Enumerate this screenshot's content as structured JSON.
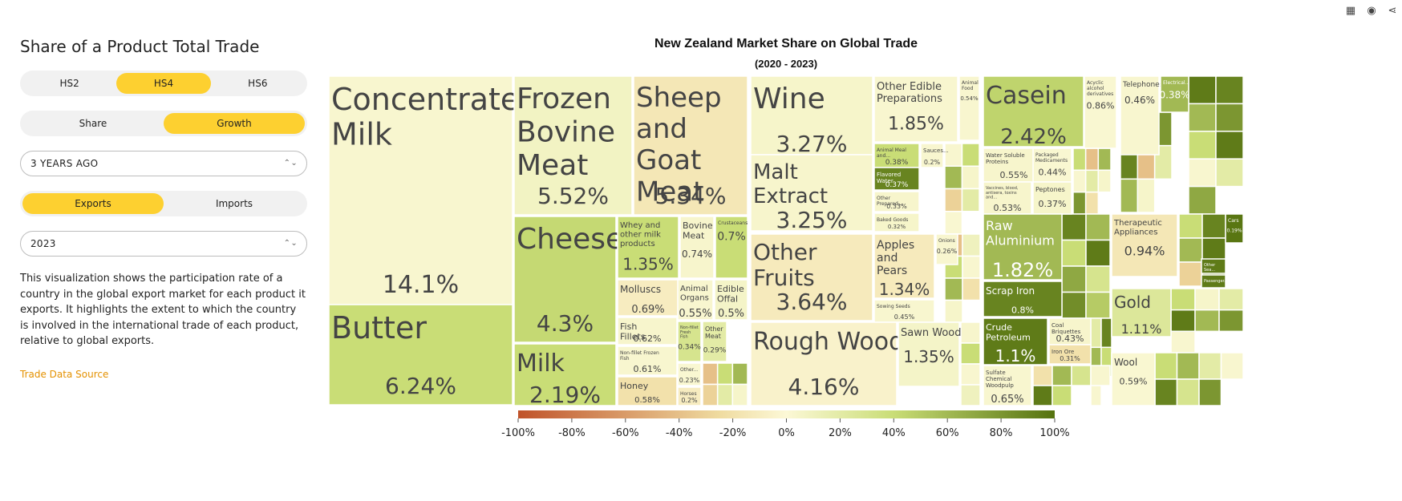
{
  "panel": {
    "title": "Share of a Product Total Trade",
    "hs_options": [
      "HS2",
      "HS4",
      "HS6"
    ],
    "hs_selected": "HS4",
    "metric_options": [
      "Share",
      "Growth"
    ],
    "metric_selected": "Growth",
    "period_value": "3 YEARS AGO",
    "flow_options": [
      "Exports",
      "Imports"
    ],
    "flow_selected": "Exports",
    "year_value": "2023",
    "description": "This visualization shows the participation rate of a country in the global export market for each product it exports. It highlights the extent to which the country is involved in the international trade of each product, relative to global exports.",
    "source_link": "Trade Data Source"
  },
  "toolbar": {
    "table_icon": "table-icon",
    "camera_icon": "camera-icon",
    "share_icon": "share-icon"
  },
  "chart_data": {
    "type": "treemap",
    "title": "New Zealand Market Share on Global Trade",
    "subtitle": "(2020 - 2023)",
    "colorscale": {
      "min": -100,
      "max": 100,
      "ticks": [
        "-100%",
        "-80%",
        "-60%",
        "-40%",
        "-20%",
        "0%",
        "20%",
        "40%",
        "60%",
        "80%",
        "100%"
      ],
      "colors": [
        "#c0532a",
        "#efdba0",
        "#fcf8d6",
        "#c9dd76",
        "#55720f"
      ]
    },
    "items": [
      {
        "name": "Concentrated Milk",
        "share": "14.1%",
        "growth": 3
      },
      {
        "name": "Butter",
        "share": "6.24%",
        "growth": 40
      },
      {
        "name": "Frozen Bovine Meat",
        "share": "5.52%",
        "growth": 8
      },
      {
        "name": "Sheep and Goat Meat",
        "share": "5.34%",
        "growth": -15
      },
      {
        "name": "Cheese",
        "share": "4.3%",
        "growth": 42
      },
      {
        "name": "Milk",
        "share": "2.19%",
        "growth": 40
      },
      {
        "name": "Whey and other milk products",
        "share": "1.35%",
        "growth": 40
      },
      {
        "name": "Bovine Meat",
        "share": "0.74%",
        "growth": 4
      },
      {
        "name": "Crustaceans",
        "share": "0.7%",
        "growth": 40
      },
      {
        "name": "Molluscs",
        "share": "0.69%",
        "growth": -10
      },
      {
        "name": "Animal Organs",
        "share": "0.55%",
        "growth": 3
      },
      {
        "name": "Edible Offal",
        "share": "0.5%",
        "growth": 6
      },
      {
        "name": "Fish Fillets",
        "share": "0.62%",
        "growth": 4
      },
      {
        "name": "Non-fillet Fresh Fish",
        "share": "0.34%",
        "growth": 30
      },
      {
        "name": "Other Meat",
        "share": "0.29%",
        "growth": 20
      },
      {
        "name": "Non-fillet Frozen Fish",
        "share": "0.61%",
        "growth": 3
      },
      {
        "name": "Other...",
        "share": "0.23%",
        "growth": 2
      },
      {
        "name": "Honey",
        "share": "0.58%",
        "growth": -20
      },
      {
        "name": "Horses",
        "share": "0.2%",
        "growth": -10
      },
      {
        "name": "Wine",
        "share": "3.27%",
        "growth": 5
      },
      {
        "name": "Malt Extract",
        "share": "3.25%",
        "growth": 4
      },
      {
        "name": "Other Edible Preparations",
        "share": "1.85%",
        "growth": 3
      },
      {
        "name": "Animal Food",
        "share": "0.54%",
        "growth": 3
      },
      {
        "name": "Animal Meal and...",
        "share": "0.38%",
        "growth": 40
      },
      {
        "name": "Flavored Water",
        "share": "0.37%",
        "growth": 90
      },
      {
        "name": "Other Prepared...",
        "share": "0.33%",
        "growth": 4
      },
      {
        "name": "Baked Goods",
        "share": "0.32%",
        "growth": 5
      },
      {
        "name": "Sauces...",
        "share": "0.2%",
        "growth": 3
      },
      {
        "name": "Other Fruits",
        "share": "3.64%",
        "growth": -12
      },
      {
        "name": "Apples and Pears",
        "share": "1.34%",
        "growth": -12
      },
      {
        "name": "Sowing Seeds",
        "share": "0.45%",
        "growth": 3
      },
      {
        "name": "Onions",
        "share": "0.26%",
        "growth": 3
      },
      {
        "name": "Rough Wood",
        "share": "4.16%",
        "growth": -5
      },
      {
        "name": "Sawn Wood",
        "share": "1.35%",
        "growth": 6
      },
      {
        "name": "Casein",
        "share": "2.42%",
        "growth": 45
      },
      {
        "name": "Acyclic alcohol derivatives",
        "share": "0.86%",
        "growth": 2
      },
      {
        "name": "Water Soluble Proteins",
        "share": "0.55%",
        "growth": 4
      },
      {
        "name": "Packaged Medicaments",
        "share": "0.44%",
        "growth": 2
      },
      {
        "name": "Vaccines, blood, antisera, toxins and...",
        "share": "0.53%",
        "growth": 4
      },
      {
        "name": "Peptones",
        "share": "0.37%",
        "growth": 5
      },
      {
        "name": "Raw Aluminium",
        "share": "1.82%",
        "growth": 60
      },
      {
        "name": "Scrap Iron",
        "share": "0.8%",
        "growth": 90
      },
      {
        "name": "Crude Petroleum",
        "share": "1.1%",
        "growth": 95
      },
      {
        "name": "Coal Briquettes",
        "share": "0.43%",
        "growth": 4
      },
      {
        "name": "Iron Ore",
        "share": "0.31%",
        "growth": -20
      },
      {
        "name": "Sulfate Chemical Woodpulp",
        "share": "0.65%",
        "growth": 3
      },
      {
        "name": "Telephones",
        "share": "0.46%",
        "growth": 3
      },
      {
        "name": "Electrical...",
        "share": "0.38%",
        "growth": 60
      },
      {
        "name": "Therapeutic Appliances",
        "share": "0.94%",
        "growth": -15
      },
      {
        "name": "Gold",
        "share": "1.11%",
        "growth": 25
      },
      {
        "name": "Wool",
        "share": "0.59%",
        "growth": 2
      },
      {
        "name": "Cars",
        "share": "0.19%",
        "growth": 98
      },
      {
        "name": "Other Sea...",
        "share": "",
        "growth": 95
      },
      {
        "name": "Passenger...",
        "share": "",
        "growth": 95
      }
    ]
  }
}
